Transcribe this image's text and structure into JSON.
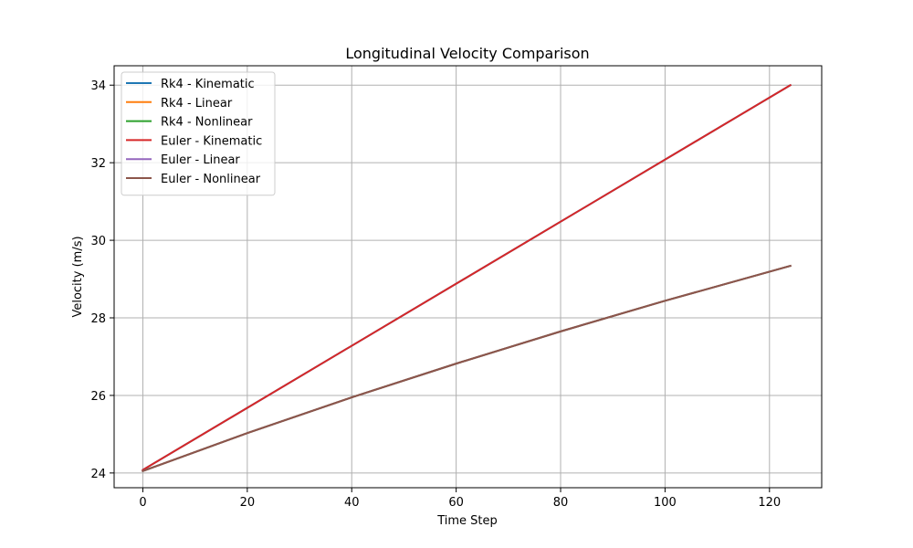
{
  "chart_data": {
    "type": "line",
    "title": "Longitudinal Velocity Comparison",
    "xlabel": "Time Step",
    "ylabel": "Velocity (m/s)",
    "xlim": [
      -5.5,
      130
    ],
    "ylim": [
      23.62,
      34.5
    ],
    "xticks": [
      0,
      20,
      40,
      60,
      80,
      100,
      120
    ],
    "yticks": [
      24,
      26,
      28,
      30,
      32,
      34
    ],
    "grid": true,
    "legend_position": "upper left",
    "series": [
      {
        "name": "Rk4 - Kinematic",
        "color": "#1f77b4",
        "x": [
          0,
          124
        ],
        "y": [
          24.08,
          34.0
        ]
      },
      {
        "name": "Rk4 - Linear",
        "color": "#ff7f0e",
        "x": [
          0,
          20,
          40,
          60,
          80,
          100,
          124
        ],
        "y": [
          24.05,
          25.03,
          25.95,
          26.82,
          27.65,
          28.44,
          29.34
        ]
      },
      {
        "name": "Rk4 - Nonlinear",
        "color": "#2ca02c",
        "x": [
          0,
          20,
          40,
          60,
          80,
          100,
          124
        ],
        "y": [
          24.05,
          25.03,
          25.95,
          26.82,
          27.65,
          28.44,
          29.34
        ]
      },
      {
        "name": "Euler - Kinematic",
        "color": "#d62728",
        "x": [
          0,
          124
        ],
        "y": [
          24.08,
          34.0
        ]
      },
      {
        "name": "Euler - Linear",
        "color": "#9467bd",
        "x": [
          0,
          20,
          40,
          60,
          80,
          100,
          124
        ],
        "y": [
          24.05,
          25.03,
          25.95,
          26.82,
          27.65,
          28.44,
          29.34
        ]
      },
      {
        "name": "Euler - Nonlinear",
        "color": "#8c564b",
        "x": [
          0,
          20,
          40,
          60,
          80,
          100,
          124
        ],
        "y": [
          24.05,
          25.03,
          25.95,
          26.82,
          27.65,
          28.44,
          29.34
        ]
      }
    ]
  }
}
